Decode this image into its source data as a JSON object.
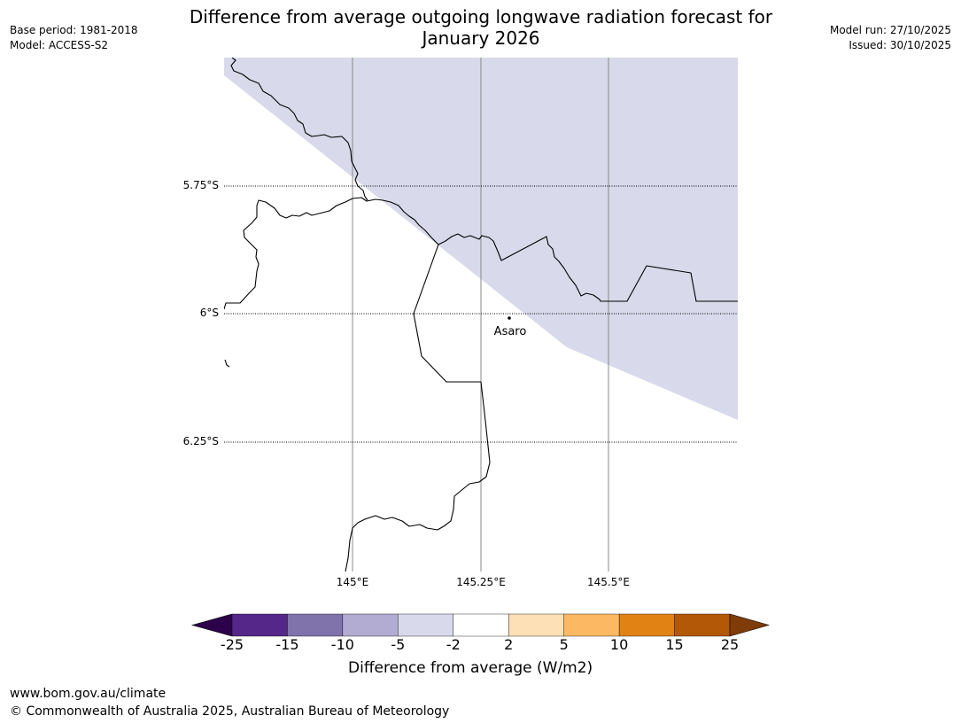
{
  "header": {
    "title_line1": "Difference from average outgoing longwave radiation forecast for",
    "title_line2": "January 2026",
    "base_period": "Base period: 1981-2018",
    "model": "Model: ACCESS-S2",
    "model_run": "Model run: 27/10/2025",
    "issued": "Issued: 30/10/2025"
  },
  "map": {
    "lat_labels": [
      "5.75°S",
      "6°S",
      "6.25°S"
    ],
    "lon_labels": [
      "145°E",
      "145.25°E",
      "145.5°E"
    ],
    "places": [
      {
        "name": "Asaro",
        "lat": -6.01,
        "lon": 145.305
      }
    ],
    "shaded_category": "-5 to -2",
    "shaded_color": "#d8d9ea"
  },
  "colorbar": {
    "title": "Difference from average (W/m2)",
    "tick_labels": [
      "-25",
      "-15",
      "-10",
      "-5",
      "-2",
      "2",
      "5",
      "10",
      "15",
      "25"
    ],
    "colors": [
      "#2d004b",
      "#542788",
      "#8073ac",
      "#b2abd2",
      "#d8daeb",
      "#ffffff",
      "#fee0b6",
      "#fdb863",
      "#e08214",
      "#b35806",
      "#7f3b08"
    ]
  },
  "footer": {
    "url": "www.bom.gov.au/climate",
    "copyright": "© Commonwealth of Australia 2025, Australian Bureau of Meteorology"
  }
}
